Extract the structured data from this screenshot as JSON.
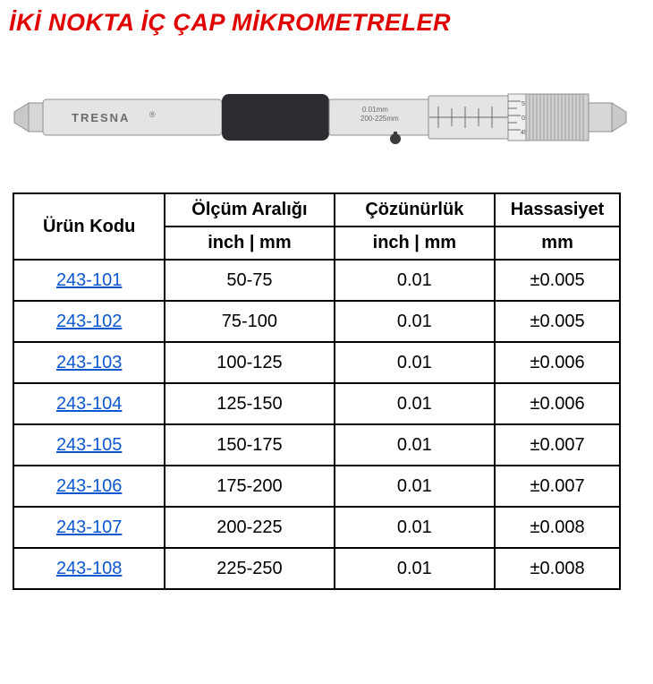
{
  "title": "İKİ NOKTA İÇ ÇAP MİKROMETRELER",
  "image": {
    "brand": "TRESNA",
    "tool_colors": {
      "barrel": "#d6d7d9",
      "grip": "#2c2d31",
      "text": "#5a5a5a",
      "outline": "#8f9093"
    }
  },
  "table": {
    "headers": {
      "code": "Ürün Kodu",
      "range": "Ölçüm Aralığı",
      "resolution": "Çözünürlük",
      "accuracy": "Hassasiyet",
      "range_unit": "inch | mm",
      "resolution_unit": "inch | mm",
      "accuracy_unit": "mm"
    },
    "rows": [
      {
        "code": "243-101",
        "range": "50-75",
        "resolution": "0.01",
        "accuracy": "±0.005"
      },
      {
        "code": "243-102",
        "range": "75-100",
        "resolution": "0.01",
        "accuracy": "±0.005"
      },
      {
        "code": "243-103",
        "range": "100-125",
        "resolution": "0.01",
        "accuracy": "±0.006"
      },
      {
        "code": "243-104",
        "range": "125-150",
        "resolution": "0.01",
        "accuracy": "±0.006"
      },
      {
        "code": "243-105",
        "range": "150-175",
        "resolution": "0.01",
        "accuracy": "±0.007"
      },
      {
        "code": "243-106",
        "range": "175-200",
        "resolution": "0.01",
        "accuracy": "±0.007"
      },
      {
        "code": "243-107",
        "range": "200-225",
        "resolution": "0.01",
        "accuracy": "±0.008"
      },
      {
        "code": "243-108",
        "range": "225-250",
        "resolution": "0.01",
        "accuracy": "±0.008"
      }
    ],
    "col_widths": {
      "code": "170",
      "range": "190",
      "resolution": "180",
      "accuracy": "140"
    },
    "link_color": "#0b57d0",
    "border_color": "#000000",
    "title_color": "#e10000",
    "font_family": "Arial",
    "header_fontsize": 20,
    "cell_fontsize": 20
  }
}
